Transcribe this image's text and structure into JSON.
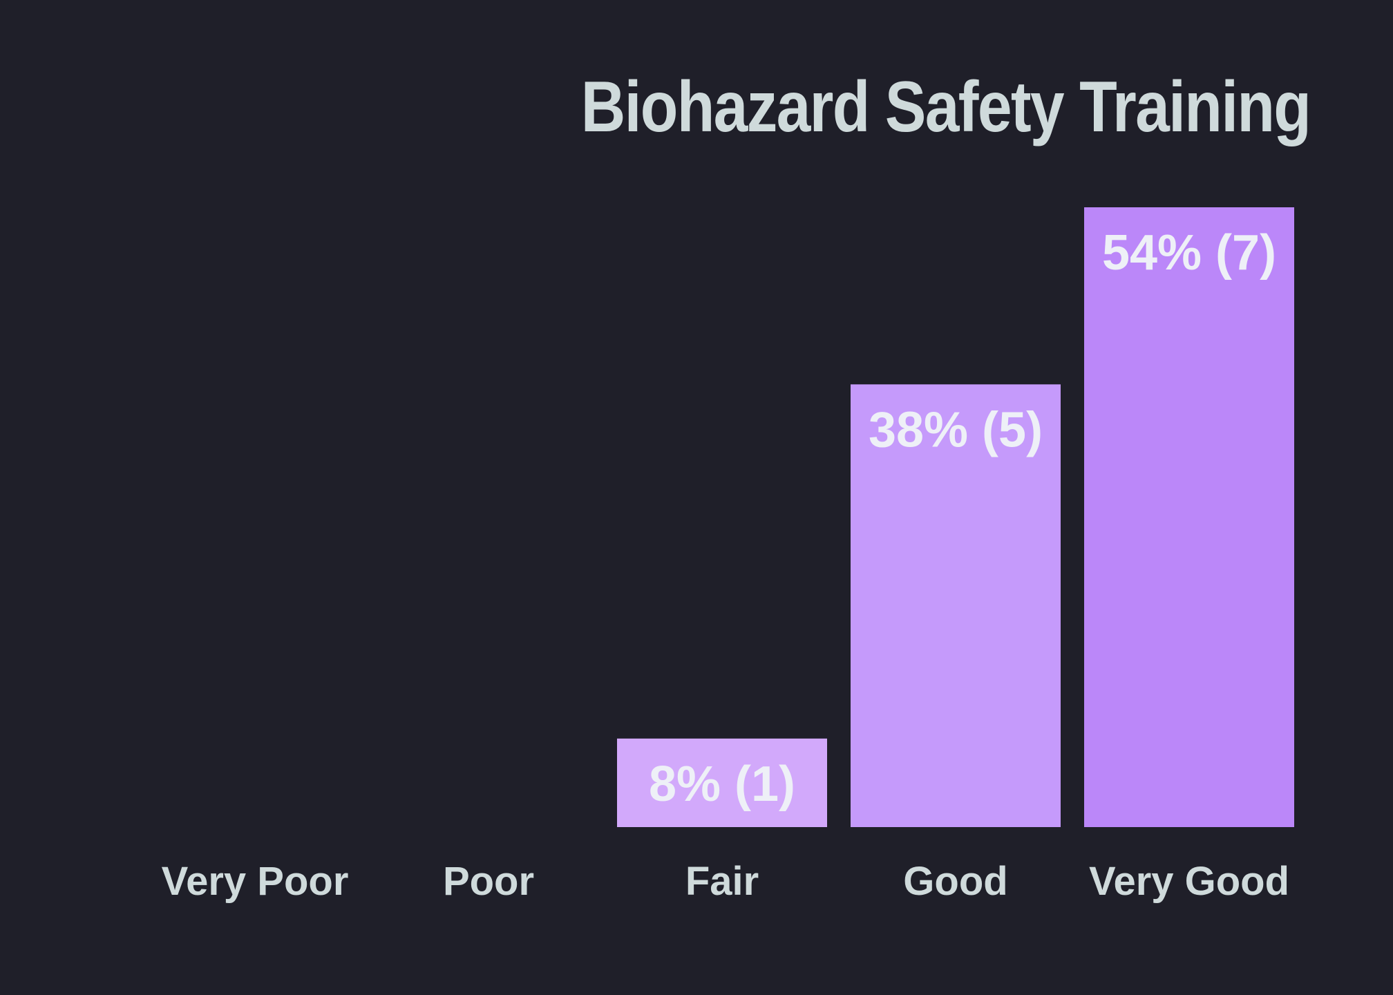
{
  "chart_data": {
    "type": "bar",
    "title": "Biohazard Safety Training",
    "xlabel": "",
    "ylabel": "",
    "categories": [
      "Very Poor",
      "Poor",
      "Fair",
      "Good",
      "Very Good"
    ],
    "values": [
      0,
      0,
      1,
      5,
      7
    ],
    "percents": [
      0,
      0,
      8,
      38,
      54
    ],
    "data_labels": [
      "",
      "",
      "8% (1)",
      "38% (5)",
      "54% (7)"
    ],
    "ylim": [
      0,
      7
    ],
    "grid": false,
    "legend": "none",
    "colors": [
      "#d2a9fb",
      "#d2a9fb",
      "#d2a9fb",
      "#c59afb",
      "#bb87f9"
    ],
    "background": "#1f1f29"
  }
}
